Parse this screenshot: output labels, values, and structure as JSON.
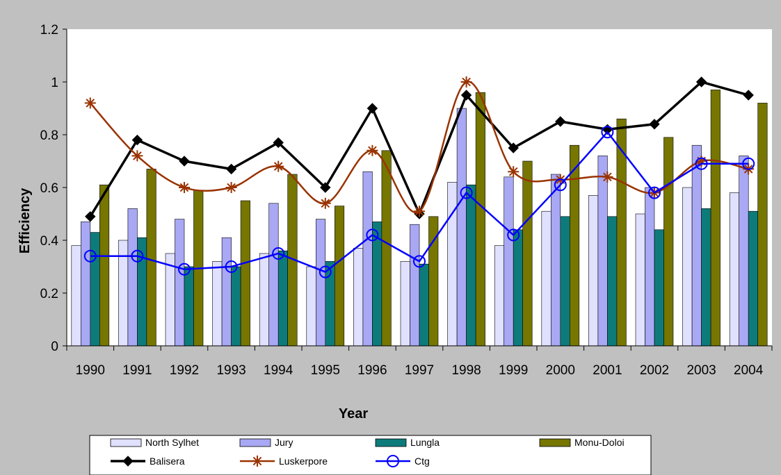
{
  "chart_data": {
    "type": "bar",
    "categories": [
      "1990",
      "1991",
      "1992",
      "1993",
      "1994",
      "1995",
      "1996",
      "1997",
      "1998",
      "1999",
      "2000",
      "2001",
      "2002",
      "2003",
      "2004"
    ],
    "title": "",
    "xlabel": "Year",
    "ylabel": "Efficiency",
    "ylim": [
      0,
      1.2
    ],
    "yticks": [
      "0",
      "0.2",
      "0.4",
      "0.6",
      "0.8",
      "1",
      "1.2"
    ],
    "grid": false,
    "legend_position": "bottom",
    "bar_series": [
      {
        "name": "North Sylhet",
        "color": "#e0e0ff",
        "values": [
          0.38,
          0.4,
          0.35,
          0.32,
          0.35,
          0.3,
          0.37,
          0.32,
          0.62,
          0.38,
          0.51,
          0.57,
          0.5,
          0.6,
          0.58
        ]
      },
      {
        "name": "Jury",
        "color": "#a8a8f4",
        "values": [
          0.47,
          0.52,
          0.48,
          0.41,
          0.54,
          0.48,
          0.66,
          0.46,
          0.9,
          0.64,
          0.65,
          0.72,
          0.6,
          0.76,
          0.72
        ]
      },
      {
        "name": "Lungla",
        "color": "#0e7b7b",
        "values": [
          0.43,
          0.41,
          0.3,
          0.3,
          0.36,
          0.32,
          0.47,
          0.31,
          0.61,
          0.44,
          0.49,
          0.49,
          0.44,
          0.52,
          0.51
        ]
      },
      {
        "name": "Monu-Doloi",
        "color": "#767600",
        "values": [
          0.61,
          0.67,
          0.59,
          0.55,
          0.65,
          0.53,
          0.74,
          0.49,
          0.96,
          0.7,
          0.76,
          0.86,
          0.79,
          0.97,
          0.92
        ]
      }
    ],
    "line_series": [
      {
        "name": "Balisera",
        "color": "#000000",
        "marker": "diamond",
        "smooth": false,
        "values": [
          0.49,
          0.78,
          0.7,
          0.67,
          0.77,
          0.6,
          0.9,
          0.5,
          0.95,
          0.75,
          0.85,
          0.82,
          0.84,
          1.0,
          0.95
        ]
      },
      {
        "name": "Luskerpore",
        "color": "#993300",
        "marker": "star",
        "smooth": true,
        "values": [
          0.92,
          0.72,
          0.6,
          0.6,
          0.68,
          0.54,
          0.74,
          0.51,
          1.0,
          0.66,
          0.63,
          0.64,
          0.58,
          0.7,
          0.67
        ]
      },
      {
        "name": "Ctg",
        "color": "#0000ff",
        "marker": "circle",
        "smooth": false,
        "values": [
          0.34,
          0.34,
          0.29,
          0.3,
          0.35,
          0.28,
          0.42,
          0.32,
          0.58,
          0.42,
          0.61,
          0.81,
          0.58,
          0.69,
          0.69
        ]
      }
    ]
  }
}
